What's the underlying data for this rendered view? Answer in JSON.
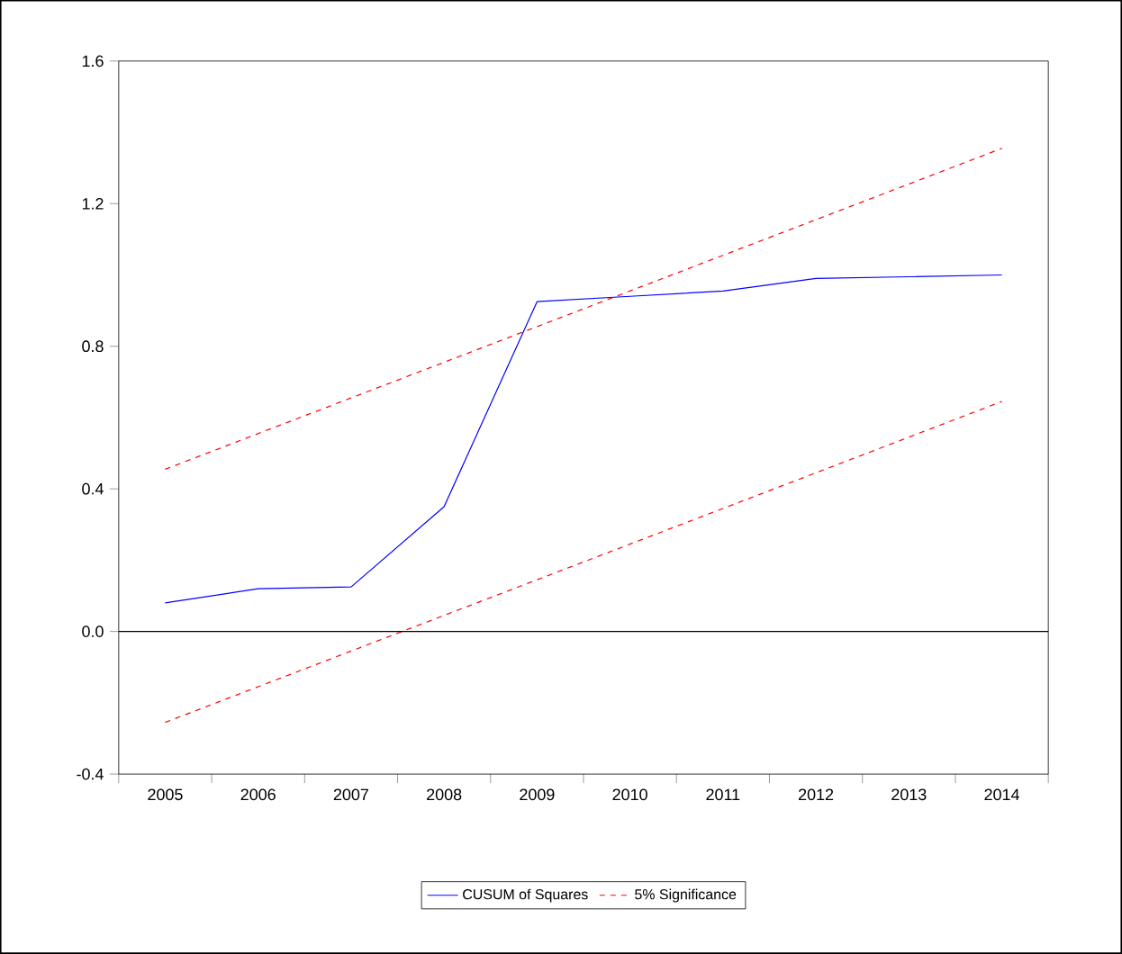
{
  "chart_data": {
    "type": "line",
    "categories": [
      "2005",
      "2006",
      "2007",
      "2008",
      "2009",
      "2010",
      "2011",
      "2012",
      "2013",
      "2014"
    ],
    "series": [
      {
        "name": "CUSUM of Squares",
        "color": "#0000ff",
        "line_style": "solid",
        "values": [
          0.08,
          0.12,
          0.125,
          0.35,
          0.925,
          0.94,
          0.955,
          0.99,
          0.995,
          1.0
        ]
      },
      {
        "name": "5% Significance",
        "color": "#ff0000",
        "line_style": "dashed",
        "values": [
          0.455,
          0.555,
          0.655,
          0.755,
          0.855,
          0.955,
          1.055,
          1.155,
          1.255,
          1.355
        ]
      },
      {
        "color": "#ff0000",
        "line_style": "dashed",
        "values": [
          -0.255,
          -0.155,
          -0.055,
          0.045,
          0.145,
          0.245,
          0.345,
          0.445,
          0.545,
          0.645
        ]
      }
    ],
    "ylim": [
      -0.4,
      1.6
    ],
    "yticks": [
      -0.4,
      {
        "value": 0,
        "label": "0.0"
      },
      0.4,
      0.8,
      1.2,
      1.6
    ],
    "ref_lines": [
      {
        "axis": "y",
        "value": 0,
        "color": "#000000"
      }
    ],
    "grid": false,
    "legend": "bottom"
  }
}
